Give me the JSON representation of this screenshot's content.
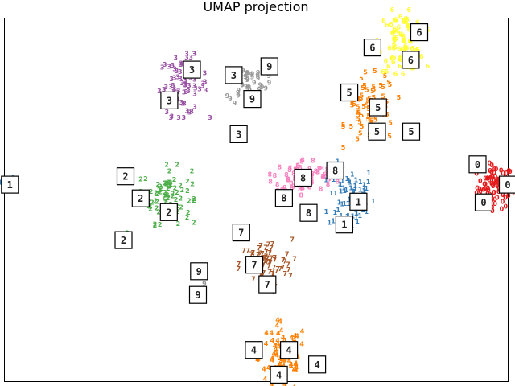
{
  "chart_data": {
    "type": "scatter",
    "title": "UMAP projection",
    "xlabel": "",
    "ylabel": "",
    "xlim": [
      0,
      100
    ],
    "ylim": [
      0,
      100
    ],
    "grid": false,
    "legend": "none",
    "ticks": "none",
    "clusters": [
      {
        "digit": "0",
        "color": "#e41a1c",
        "center": [
          97.5,
          52.9
        ],
        "spread": [
          1.8,
          3.0
        ],
        "n": 90
      },
      {
        "digit": "1",
        "color": "#377eb8",
        "center": [
          68.9,
          50.0
        ],
        "spread": [
          2.3,
          4.6
        ],
        "n": 70
      },
      {
        "digit": "1",
        "color": "#377eb8",
        "center": [
          0.5,
          53.8
        ],
        "spread": [
          0.8,
          1.1
        ],
        "n": 12
      },
      {
        "digit": "2",
        "color": "#4daf4a",
        "center": [
          32.3,
          50.7
        ],
        "spread": [
          2.4,
          3.8
        ],
        "n": 80
      },
      {
        "digit": "2",
        "color": "#4daf4a",
        "center": [
          24.5,
          39.5
        ],
        "spread": [
          0.4,
          0.4
        ],
        "n": 3
      },
      {
        "digit": "3",
        "color": "#984ea3",
        "center": [
          35.5,
          80.9
        ],
        "spread": [
          2.4,
          4.0
        ],
        "n": 70
      },
      {
        "digit": "4",
        "color": "#ff7f00",
        "center": [
          55.3,
          5.7
        ],
        "spread": [
          2.4,
          4.8
        ],
        "n": 80
      },
      {
        "digit": "5",
        "color": "#ff7f00",
        "center": [
          72.8,
          74.4
        ],
        "spread": [
          2.5,
          4.8
        ],
        "n": 75
      },
      {
        "digit": "6",
        "color": "#ffff33",
        "center": [
          79.0,
          93.0
        ],
        "spread": [
          2.3,
          4.0
        ],
        "n": 80
      },
      {
        "digit": "7",
        "color": "#a65628",
        "center": [
          51.9,
          31.6
        ],
        "spread": [
          2.6,
          3.4
        ],
        "n": 70
      },
      {
        "digit": "8",
        "color": "#f781bf",
        "center": [
          59.5,
          55.9
        ],
        "spread": [
          3.1,
          2.4
        ],
        "n": 75
      },
      {
        "digit": "9",
        "color": "#999999",
        "center": [
          48.4,
          81.4
        ],
        "spread": [
          1.9,
          2.8
        ],
        "n": 45
      },
      {
        "digit": "9",
        "color": "#999999",
        "center": [
          39.4,
          24.7
        ],
        "spread": [
          0.4,
          0.7
        ],
        "n": 5
      }
    ],
    "thumbnails": [
      {
        "digit": "6",
        "x": 73.1,
        "y": 92.0
      },
      {
        "digit": "6",
        "x": 82.4,
        "y": 96.2
      },
      {
        "digit": "6",
        "x": 80.7,
        "y": 88.6
      },
      {
        "digit": "3",
        "x": 37.2,
        "y": 85.9
      },
      {
        "digit": "3",
        "x": 32.7,
        "y": 77.4
      },
      {
        "digit": "3",
        "x": 45.5,
        "y": 84.4
      },
      {
        "digit": "3",
        "x": 46.5,
        "y": 68.1
      },
      {
        "digit": "9",
        "x": 52.6,
        "y": 86.8
      },
      {
        "digit": "9",
        "x": 49.2,
        "y": 77.8
      },
      {
        "digit": "5",
        "x": 68.5,
        "y": 79.6
      },
      {
        "digit": "5",
        "x": 74.2,
        "y": 75.5
      },
      {
        "digit": "5",
        "x": 74.0,
        "y": 68.8
      },
      {
        "digit": "5",
        "x": 80.8,
        "y": 68.8
      },
      {
        "digit": "0",
        "x": 94.0,
        "y": 59.8
      },
      {
        "digit": "0",
        "x": 100.0,
        "y": 54.2
      },
      {
        "digit": "0",
        "x": 95.2,
        "y": 49.3
      },
      {
        "digit": "1",
        "x": 1.0,
        "y": 54.2
      },
      {
        "digit": "1",
        "x": 70.3,
        "y": 49.5
      },
      {
        "digit": "1",
        "x": 67.5,
        "y": 43.2
      },
      {
        "digit": "2",
        "x": 24.0,
        "y": 56.5
      },
      {
        "digit": "2",
        "x": 27.0,
        "y": 50.4
      },
      {
        "digit": "2",
        "x": 32.6,
        "y": 46.6
      },
      {
        "digit": "2",
        "x": 23.6,
        "y": 38.9
      },
      {
        "digit": "8",
        "x": 59.3,
        "y": 56.1
      },
      {
        "digit": "8",
        "x": 65.7,
        "y": 58.1
      },
      {
        "digit": "8",
        "x": 55.5,
        "y": 50.5
      },
      {
        "digit": "8",
        "x": 60.4,
        "y": 46.4
      },
      {
        "digit": "7",
        "x": 47.0,
        "y": 41.0
      },
      {
        "digit": "7",
        "x": 49.6,
        "y": 32.1
      },
      {
        "digit": "7",
        "x": 52.2,
        "y": 26.7
      },
      {
        "digit": "9",
        "x": 38.6,
        "y": 30.3
      },
      {
        "digit": "9",
        "x": 38.4,
        "y": 23.8
      },
      {
        "digit": "4",
        "x": 49.5,
        "y": 8.6
      },
      {
        "digit": "4",
        "x": 56.5,
        "y": 8.6
      },
      {
        "digit": "4",
        "x": 62.1,
        "y": 4.6
      },
      {
        "digit": "4",
        "x": 54.5,
        "y": 1.8
      }
    ]
  }
}
